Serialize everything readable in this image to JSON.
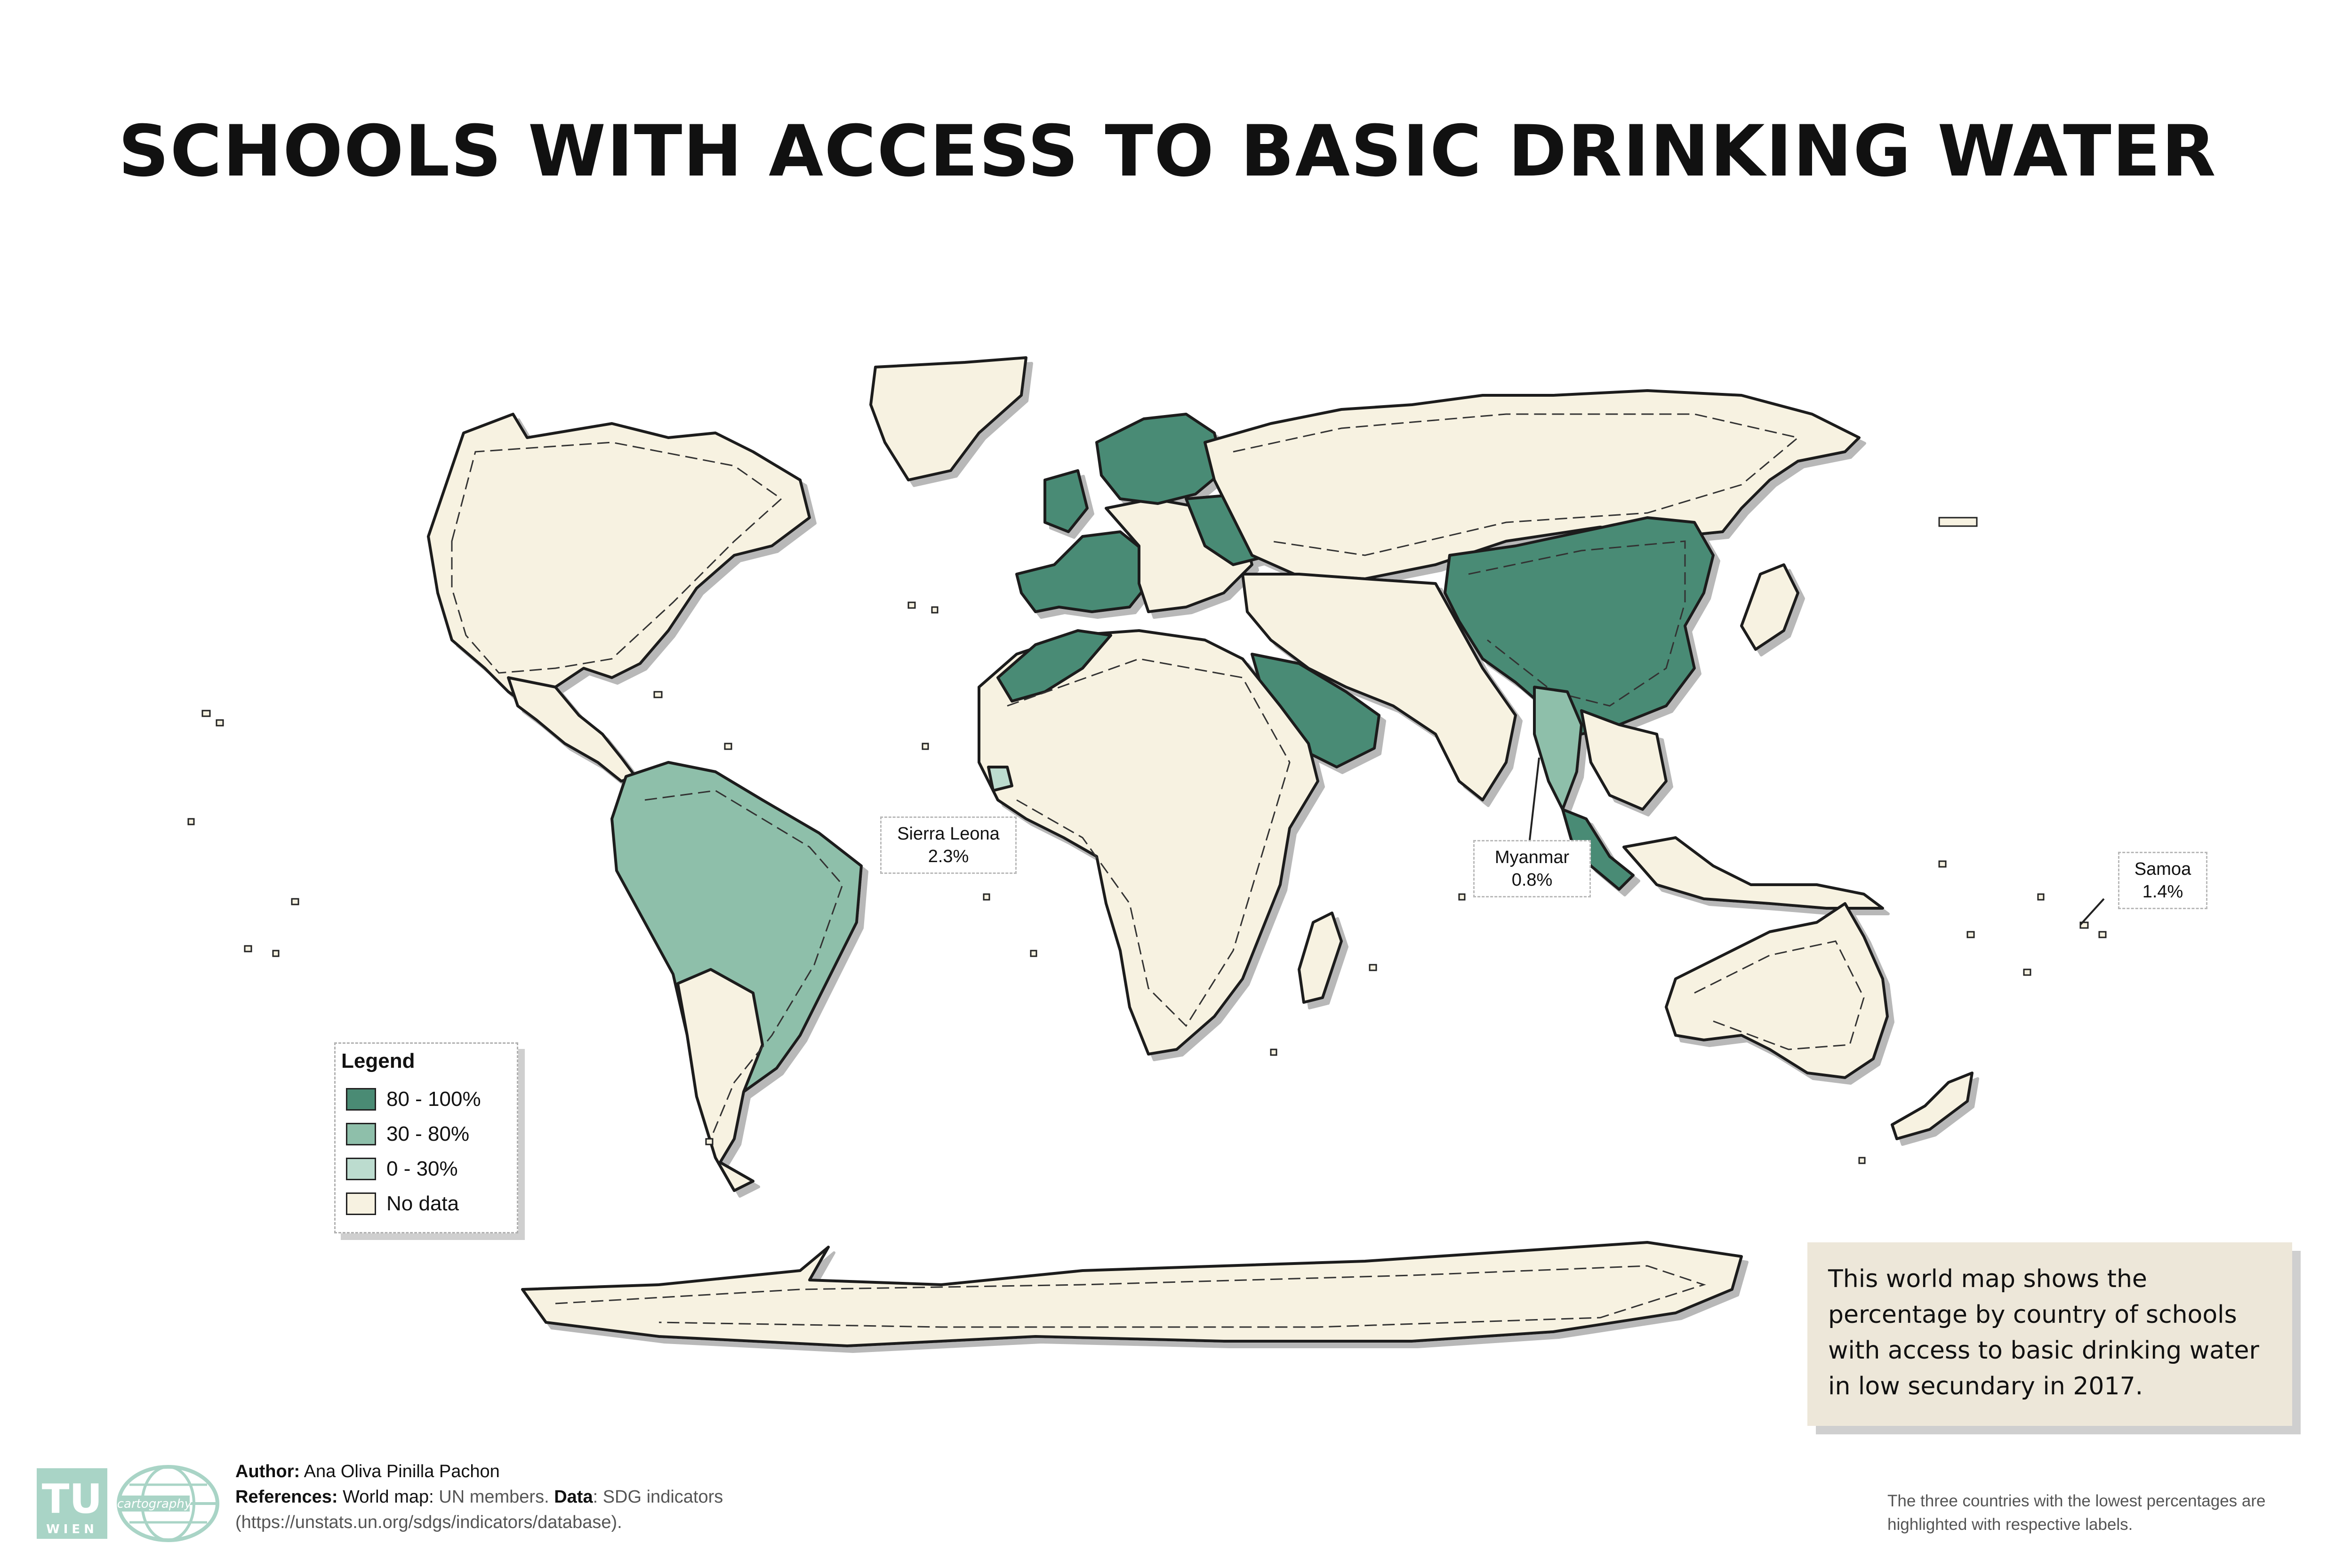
{
  "title": "SCHOOLS WITH ACCESS TO BASIC DRINKING WATER",
  "colors": {
    "high": "#4a8b74",
    "mid": "#8ebfaa",
    "low": "#bcdccf",
    "no_data": "#f7f2e1",
    "info_box": "#ede7d9"
  },
  "callouts": [
    {
      "country": "Sierra Leona",
      "value": "2.3%"
    },
    {
      "country": "Myanmar",
      "value": "0.8%"
    },
    {
      "country": "Samoa",
      "value": "1.4%"
    }
  ],
  "legend": {
    "title": "Legend",
    "items": [
      {
        "label": "80 - 100%",
        "color": "#4a8b74"
      },
      {
        "label": "30 - 80%",
        "color": "#8ebfaa"
      },
      {
        "label": "0 - 30%",
        "color": "#bcdccf"
      },
      {
        "label": "No data",
        "color": "#f7f2e1"
      }
    ]
  },
  "info_text": "This world map shows the percentage by country of schools with access to basic drinking water in low secundary in 2017.",
  "credits": {
    "author_label": "Author:",
    "author": "Ana Oliva Pinilla Pachon",
    "references_label": "References:",
    "world_map_text": "World map:",
    "world_map_value": "UN members.",
    "data_label": "Data",
    "data_value": ": SDG indicators",
    "url": "(https://unstats.un.org/sdgs/indicators/database)."
  },
  "logos": {
    "tu_text": "TU",
    "wien_text": "WIEN",
    "carto_text": "cartography"
  },
  "note": "The three countries with the lowest percentages are highlighted with respective labels."
}
